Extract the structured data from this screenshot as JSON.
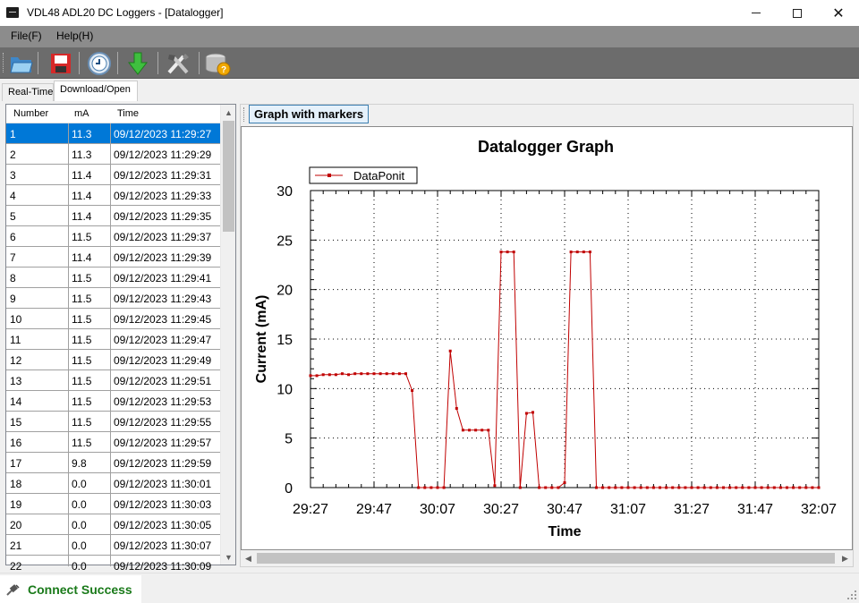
{
  "window": {
    "title": "VDL48 ADL20 DC Loggers - [Datalogger]"
  },
  "menu": {
    "file": "File(F)",
    "help": "Help(H)"
  },
  "toolbar": {
    "icons": [
      "open-folder-icon",
      "save-disk-icon",
      "clock-icon",
      "download-arrow-icon",
      "tools-icon",
      "database-help-icon"
    ]
  },
  "tabs": {
    "realtime": "Real-Time",
    "download": "Download/Open"
  },
  "table": {
    "columns": [
      "Number",
      "mA",
      "Time"
    ],
    "selected_row": 0,
    "rows": [
      [
        "1",
        "11.3",
        "09/12/2023 11:29:27"
      ],
      [
        "2",
        "11.3",
        "09/12/2023 11:29:29"
      ],
      [
        "3",
        "11.4",
        "09/12/2023 11:29:31"
      ],
      [
        "4",
        "11.4",
        "09/12/2023 11:29:33"
      ],
      [
        "5",
        "11.4",
        "09/12/2023 11:29:35"
      ],
      [
        "6",
        "11.5",
        "09/12/2023 11:29:37"
      ],
      [
        "7",
        "11.4",
        "09/12/2023 11:29:39"
      ],
      [
        "8",
        "11.5",
        "09/12/2023 11:29:41"
      ],
      [
        "9",
        "11.5",
        "09/12/2023 11:29:43"
      ],
      [
        "10",
        "11.5",
        "09/12/2023 11:29:45"
      ],
      [
        "11",
        "11.5",
        "09/12/2023 11:29:47"
      ],
      [
        "12",
        "11.5",
        "09/12/2023 11:29:49"
      ],
      [
        "13",
        "11.5",
        "09/12/2023 11:29:51"
      ],
      [
        "14",
        "11.5",
        "09/12/2023 11:29:53"
      ],
      [
        "15",
        "11.5",
        "09/12/2023 11:29:55"
      ],
      [
        "16",
        "11.5",
        "09/12/2023 11:29:57"
      ],
      [
        "17",
        "9.8",
        "09/12/2023 11:29:59"
      ],
      [
        "18",
        "0.0",
        "09/12/2023 11:30:01"
      ],
      [
        "19",
        "0.0",
        "09/12/2023 11:30:03"
      ],
      [
        "20",
        "0.0",
        "09/12/2023 11:30:05"
      ],
      [
        "21",
        "0.0",
        "09/12/2023 11:30:07"
      ],
      [
        "22",
        "0.0",
        "09/12/2023 11:30:09"
      ]
    ]
  },
  "graph_tab": "Graph with markers",
  "chart_data": {
    "type": "line",
    "title": "Datalogger Graph",
    "xlabel": "Time",
    "ylabel": "Current (mA)",
    "legend": "top-left",
    "grid": true,
    "ylim": [
      0,
      30
    ],
    "xlim": [
      "29:27",
      "32:07"
    ],
    "yticks": [
      "0",
      "5",
      "10",
      "15",
      "20",
      "25",
      "30"
    ],
    "xticks": [
      "29:27",
      "29:47",
      "30:07",
      "30:27",
      "30:47",
      "31:07",
      "31:27",
      "31:47",
      "32:07"
    ],
    "line_color": "#c00000",
    "series": [
      {
        "name": "DataPonit",
        "x": [
          "29:27",
          "29:29",
          "29:31",
          "29:33",
          "29:35",
          "29:37",
          "29:39",
          "29:41",
          "29:43",
          "29:45",
          "29:47",
          "29:49",
          "29:51",
          "29:53",
          "29:55",
          "29:57",
          "29:59",
          "30:01",
          "30:03",
          "30:05",
          "30:07",
          "30:09",
          "30:11",
          "30:13",
          "30:15",
          "30:17",
          "30:19",
          "30:21",
          "30:23",
          "30:25",
          "30:27",
          "30:29",
          "30:31",
          "30:33",
          "30:35",
          "30:37",
          "30:39",
          "30:41",
          "30:43",
          "30:45",
          "30:47",
          "30:49",
          "30:51",
          "30:53",
          "30:55",
          "30:57",
          "30:59",
          "31:01",
          "31:03",
          "31:05",
          "31:07",
          "31:09",
          "31:11",
          "31:13",
          "31:15",
          "31:17",
          "31:19",
          "31:21",
          "31:23",
          "31:25",
          "31:27",
          "31:29",
          "31:31",
          "31:33",
          "31:35",
          "31:37",
          "31:39",
          "31:41",
          "31:43",
          "31:45",
          "31:47",
          "31:49",
          "31:51",
          "31:53",
          "31:55",
          "31:57",
          "31:59",
          "32:01",
          "32:03",
          "32:05",
          "32:07"
        ],
        "values": [
          11.3,
          11.3,
          11.4,
          11.4,
          11.4,
          11.5,
          11.4,
          11.5,
          11.5,
          11.5,
          11.5,
          11.5,
          11.5,
          11.5,
          11.5,
          11.5,
          9.8,
          0.0,
          0.0,
          0.0,
          0.0,
          0.0,
          13.8,
          8.0,
          5.8,
          5.8,
          5.8,
          5.8,
          5.8,
          0.2,
          23.8,
          23.8,
          23.8,
          0.0,
          7.5,
          7.6,
          0.0,
          0.0,
          0.0,
          0.0,
          0.5,
          23.8,
          23.8,
          23.8,
          23.8,
          0.0,
          0.0,
          0.0,
          0.0,
          0.0,
          0.0,
          0.0,
          0.0,
          0.0,
          0.0,
          0.0,
          0.0,
          0.0,
          0.0,
          0.0,
          0.0,
          0.0,
          0.0,
          0.0,
          0.0,
          0.0,
          0.0,
          0.0,
          0.0,
          0.0,
          0.0,
          0.0,
          0.0,
          0.0,
          0.0,
          0.0,
          0.0,
          0.0,
          0.0,
          0.0,
          0.0
        ]
      }
    ]
  },
  "status": {
    "text": "Connect Success"
  }
}
